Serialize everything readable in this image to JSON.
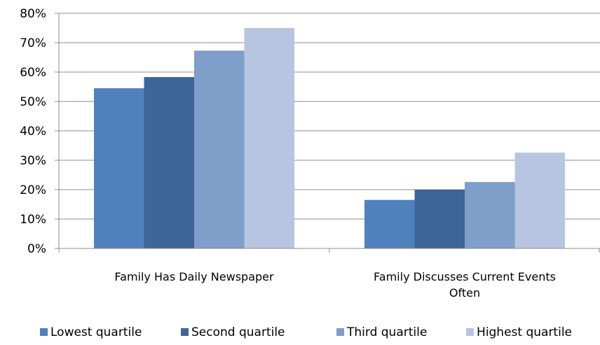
{
  "chart_data": {
    "type": "bar",
    "categories": [
      [
        "Family Has Daily Newspaper"
      ],
      [
        "Family Discusses Current Events",
        "Often"
      ]
    ],
    "series": [
      {
        "name": "Lowest quartile",
        "values": [
          54.5,
          16.5
        ],
        "color": "#4F81BD"
      },
      {
        "name": "Second quartile",
        "values": [
          58.3,
          20.0
        ],
        "color": "#3D6597"
      },
      {
        "name": "Third quartile",
        "values": [
          67.3,
          22.6
        ],
        "color": "#7F9EC9"
      },
      {
        "name": "Highest quartile",
        "values": [
          75.0,
          32.6
        ],
        "color": "#B7C5E0"
      }
    ],
    "ylim": [
      0,
      80
    ],
    "yticks": [
      "0%",
      "10%",
      "20%",
      "30%",
      "40%",
      "50%",
      "60%",
      "70%",
      "80%"
    ],
    "grid": true,
    "legend_position": "bottom"
  }
}
